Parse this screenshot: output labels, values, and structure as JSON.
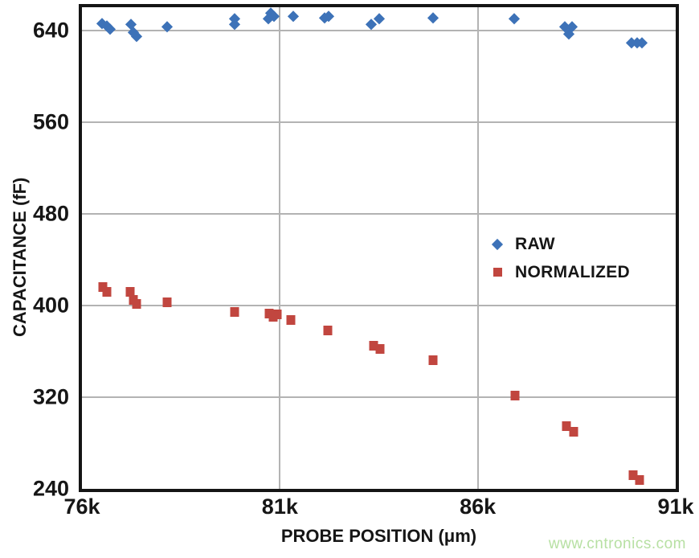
{
  "watermark": {
    "text": "www.cntronics.com",
    "color": "#b7e0a3"
  },
  "chart_data": {
    "type": "scatter",
    "title": "",
    "xlabel": "PROBE POSITION (μm)",
    "ylabel": "CAPACITANCE (fF)",
    "xlim": [
      76000,
      91000
    ],
    "ylim": [
      240,
      660
    ],
    "grid": true,
    "legend_position": "inside-right",
    "x_ticks": [
      {
        "value": 76000,
        "label": "76k"
      },
      {
        "value": 81000,
        "label": "81k"
      },
      {
        "value": 86000,
        "label": "86k"
      },
      {
        "value": 91000,
        "label": "91k"
      }
    ],
    "y_ticks": [
      {
        "value": 640,
        "label": "640"
      },
      {
        "value": 560,
        "label": "560"
      },
      {
        "value": 480,
        "label": "480"
      },
      {
        "value": 400,
        "label": "400"
      },
      {
        "value": 320,
        "label": "320"
      },
      {
        "value": 240,
        "label": "240"
      }
    ],
    "x_gridlines": [
      81000,
      86000
    ],
    "y_gridlines": [
      640,
      560,
      480,
      400,
      320
    ],
    "axis_color": "#151515",
    "gridline_color": "#b3b3b3",
    "series": [
      {
        "name": "RAW",
        "marker": "diamond",
        "color": "#3d72b8",
        "points": [
          [
            76510,
            646
          ],
          [
            76630,
            644
          ],
          [
            76710,
            641
          ],
          [
            77240,
            645
          ],
          [
            77300,
            638
          ],
          [
            77380,
            635
          ],
          [
            78150,
            643
          ],
          [
            79860,
            650
          ],
          [
            79860,
            645
          ],
          [
            80710,
            650
          ],
          [
            80770,
            655
          ],
          [
            80850,
            652
          ],
          [
            81340,
            652
          ],
          [
            82130,
            651
          ],
          [
            82230,
            652
          ],
          [
            83310,
            645
          ],
          [
            83510,
            650
          ],
          [
            84870,
            651
          ],
          [
            86920,
            650
          ],
          [
            88200,
            643
          ],
          [
            88380,
            643
          ],
          [
            88300,
            637
          ],
          [
            89880,
            629
          ],
          [
            90020,
            629
          ],
          [
            90150,
            629
          ]
        ]
      },
      {
        "name": "NORMALIZED",
        "marker": "square",
        "color": "#c1463f",
        "points": [
          [
            76530,
            416
          ],
          [
            76630,
            412
          ],
          [
            77220,
            412
          ],
          [
            77300,
            405
          ],
          [
            77380,
            401
          ],
          [
            78150,
            403
          ],
          [
            79860,
            394
          ],
          [
            80730,
            393
          ],
          [
            80830,
            390
          ],
          [
            80930,
            392
          ],
          [
            81280,
            387
          ],
          [
            82210,
            378
          ],
          [
            83370,
            365
          ],
          [
            83540,
            362
          ],
          [
            84870,
            352
          ],
          [
            86940,
            321
          ],
          [
            88240,
            295
          ],
          [
            88420,
            290
          ],
          [
            89920,
            252
          ],
          [
            90090,
            248
          ]
        ]
      }
    ]
  }
}
